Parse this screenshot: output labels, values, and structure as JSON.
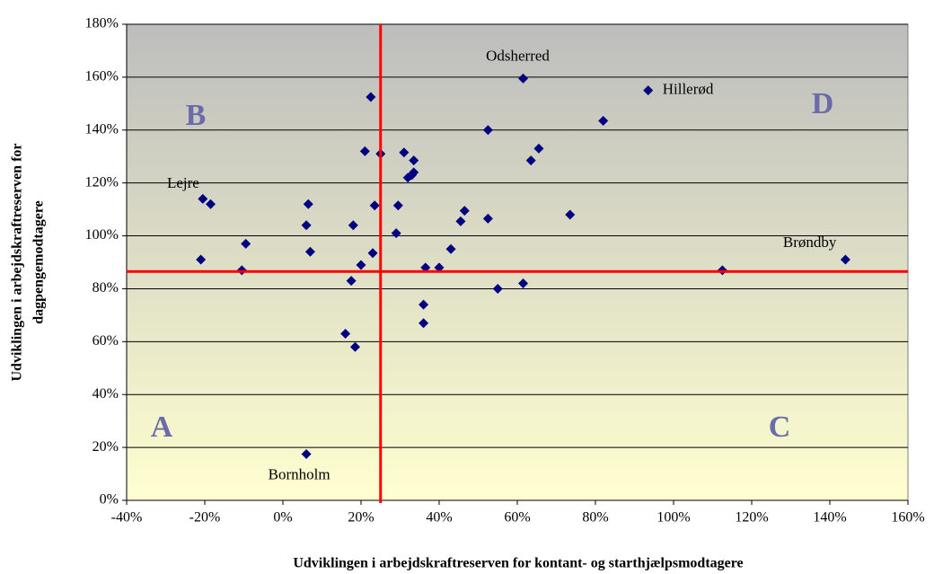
{
  "chart_data": {
    "type": "scatter",
    "x_label": "Udviklingen i arbejdskraftreserven for kontant- og starthjælpsmodtagere",
    "y_label": [
      "Udviklingen i arbejdskraftreserven for",
      "dagpengemodtagere"
    ],
    "x": [
      -21,
      -20.5,
      -18.5,
      -9.5,
      -10.5,
      6.5,
      6,
      7,
      6,
      16,
      18.5,
      17.5,
      18,
      20,
      21,
      23,
      23.5,
      22.5,
      25,
      29,
      29.5,
      31,
      32,
      33,
      33.5,
      33.5,
      36,
      36,
      36.5,
      40,
      43,
      45.5,
      46.5,
      52.5,
      52.5,
      55,
      61.5,
      61.5,
      63.5,
      65.5,
      73.5,
      82,
      93.5,
      112.5,
      144
    ],
    "series": [
      {
        "color": "#000080",
        "values": [
          91,
          114,
          112,
          97,
          87,
          112,
          104,
          94,
          17.5,
          63,
          58,
          83,
          104,
          89,
          132,
          93.5,
          111.5,
          152.5,
          131,
          101,
          111.5,
          131.5,
          122,
          123,
          124,
          128.5,
          74,
          67,
          88,
          88,
          95,
          105.5,
          109.5,
          140,
          106.5,
          80,
          159.5,
          82,
          128.5,
          133,
          108,
          143.5,
          155,
          87,
          91
        ],
        "point_labels": [
          null,
          "Lejre",
          null,
          null,
          null,
          null,
          null,
          null,
          "Bornholm",
          null,
          null,
          null,
          null,
          null,
          null,
          null,
          null,
          null,
          null,
          null,
          null,
          null,
          null,
          null,
          null,
          null,
          null,
          null,
          null,
          null,
          null,
          null,
          null,
          null,
          null,
          null,
          "Odsherred",
          null,
          null,
          null,
          null,
          null,
          "Hillerød",
          null,
          "Brøndby"
        ]
      }
    ],
    "xlim": [
      -40,
      160
    ],
    "xticks": [
      {
        "value": -40,
        "label": "-40%"
      },
      {
        "value": -20,
        "label": "-20%"
      },
      {
        "value": 0,
        "label": "0%"
      },
      {
        "value": 20,
        "label": "20%"
      },
      {
        "value": 40,
        "label": "40%"
      },
      {
        "value": 60,
        "label": "60%"
      },
      {
        "value": 80,
        "label": "80%"
      },
      {
        "value": 100,
        "label": "100%"
      },
      {
        "value": 120,
        "label": "120%"
      },
      {
        "value": 140,
        "label": "140%"
      },
      {
        "value": 160,
        "label": "160%"
      }
    ],
    "ylim": [
      0,
      180
    ],
    "yticks": [
      {
        "value": 0,
        "label": "0%"
      },
      {
        "value": 20,
        "label": "20%"
      },
      {
        "value": 40,
        "label": "40%"
      },
      {
        "value": 60,
        "label": "60%"
      },
      {
        "value": 80,
        "label": "80%"
      },
      {
        "value": 100,
        "label": "100%"
      },
      {
        "value": 120,
        "label": "120%"
      },
      {
        "value": 140,
        "label": "140%"
      },
      {
        "value": 160,
        "label": "160%"
      },
      {
        "value": 180,
        "label": "180%"
      }
    ],
    "grid": true,
    "reference_lines": {
      "x": 25,
      "y": 86.5,
      "color": "#ff0000"
    },
    "quadrant_labels": {
      "A": "A",
      "B": "B",
      "C": "C",
      "D": "D"
    }
  }
}
